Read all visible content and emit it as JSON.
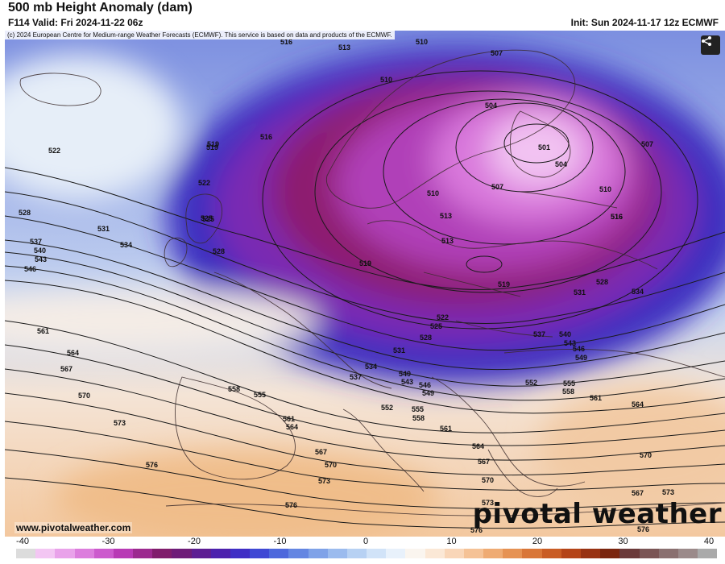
{
  "header": {
    "title": "500 mb Height Anomaly (dam)",
    "valid": "F114 Valid: Fri 2024-11-22 06z",
    "init": "Init: Sun 2024-11-17 12z ECMWF"
  },
  "map": {
    "copyright": "(c) 2024 European Centre for Medium-range Weather Forecasts (ECMWF). This service is based on data and products of the ECMWF.",
    "share_icon": "share-icon",
    "site_url": "www.pivotalweather.com",
    "brand": "pivotal weather",
    "contour_labels": [
      "510",
      "513",
      "507",
      "516",
      "519",
      "510",
      "504",
      "519",
      "501",
      "504",
      "507",
      "516",
      "522",
      "522",
      "510",
      "507",
      "510",
      "513",
      "516",
      "525",
      "528",
      "513",
      "516",
      "525",
      "519",
      "531",
      "528",
      "534",
      "537",
      "519",
      "528",
      "540",
      "543",
      "546",
      "531",
      "534",
      "522",
      "525",
      "528",
      "537",
      "540",
      "531",
      "543",
      "546",
      "549",
      "561",
      "534",
      "552",
      "564",
      "555",
      "537",
      "540",
      "543",
      "546",
      "567",
      "558",
      "555",
      "549",
      "558",
      "561",
      "552",
      "555",
      "570",
      "558",
      "561",
      "564",
      "564",
      "561",
      "567",
      "573",
      "564",
      "567",
      "570",
      "576",
      "570",
      "573",
      "567",
      "570",
      "573",
      "576",
      "573",
      "576",
      "576"
    ]
  },
  "colorbar": {
    "ticks": [
      "-40",
      "-30",
      "-20",
      "-10",
      "0",
      "10",
      "20",
      "30",
      "40"
    ],
    "colors": [
      "#dcdcdc",
      "#f3c6f3",
      "#e9a2ea",
      "#dc7ddd",
      "#cc5acd",
      "#b83ab5",
      "#9c2a8f",
      "#801d6c",
      "#6e1c78",
      "#5d1e93",
      "#4c21ad",
      "#3f2ec5",
      "#3f48d4",
      "#4d68dc",
      "#6486e2",
      "#7fa2e8",
      "#9bbbee",
      "#b7d1f3",
      "#d1e3f8",
      "#e8f1fb",
      "#faf5ef",
      "#fbe8d6",
      "#f9d6b8",
      "#f5c296",
      "#efab73",
      "#e69253",
      "#d97638",
      "#c95c24",
      "#b44418",
      "#983212",
      "#7a250e",
      "#6b3a3a",
      "#7a5555",
      "#8a7070",
      "#9b8a8a",
      "#aaaaaa"
    ]
  }
}
